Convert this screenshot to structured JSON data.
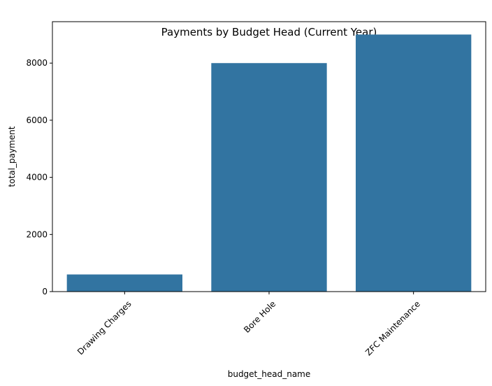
{
  "chart_data": {
    "type": "bar",
    "title": "Payments by Budget Head (Current Year)",
    "xlabel": "budget_head_name",
    "ylabel": "total_payment",
    "categories": [
      "Drawing Charges",
      "Bore Hole",
      "ZFC Maintenance"
    ],
    "values": [
      600,
      8000,
      9000
    ],
    "ylim": [
      0,
      9450
    ],
    "yticks": [
      0,
      2000,
      4000,
      6000,
      8000
    ],
    "bar_color": "#3274a1",
    "grid": false,
    "xtick_rotation": 45
  }
}
